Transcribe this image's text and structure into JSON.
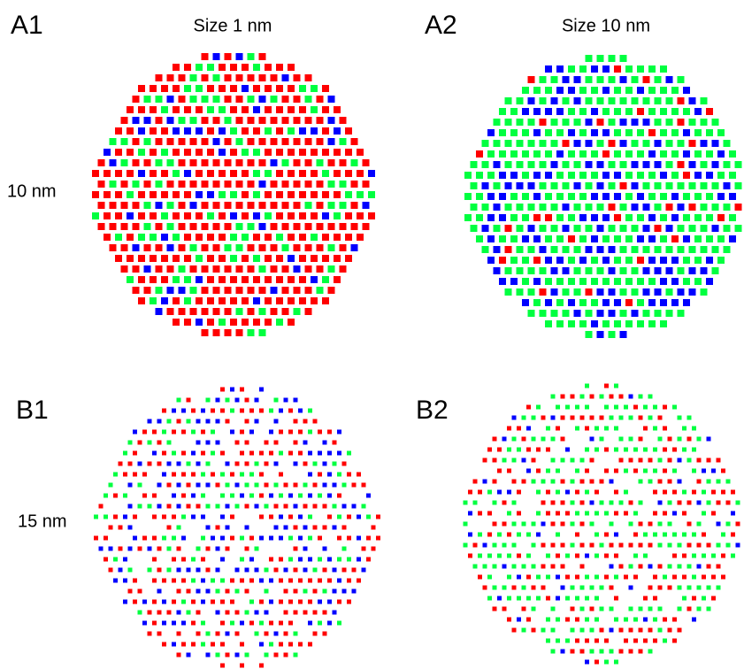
{
  "panels": [
    {
      "label": "A1",
      "title": "Size 1 nm",
      "scale": "10 nm"
    },
    {
      "label": "A2",
      "title": "Size 10 nm"
    },
    {
      "label": "B1",
      "scale": "15 nm"
    },
    {
      "label": "B2"
    }
  ]
}
